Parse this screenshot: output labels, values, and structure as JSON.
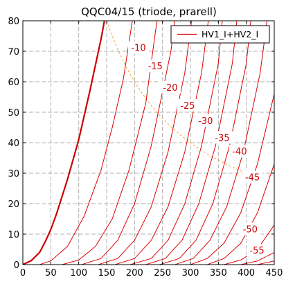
{
  "chart_data": {
    "type": "line",
    "title": "QQC04/15 (triode, prarell)",
    "xlabel": "",
    "ylabel": "",
    "xlim": [
      0,
      450
    ],
    "ylim": [
      0,
      80
    ],
    "x_ticks": [
      0,
      50,
      100,
      150,
      200,
      250,
      300,
      350,
      400,
      450
    ],
    "y_ticks": [
      0,
      10,
      20,
      30,
      40,
      50,
      60,
      70,
      80
    ],
    "grid": true,
    "legend": {
      "position": "top-right",
      "entries": [
        "HV1_I+HV2_I"
      ]
    },
    "colors": {
      "curves": "#dd0000",
      "zero_bias_curve": "#cc0000",
      "dissipation_line": "#f0a030",
      "grid": "#b0b0b0"
    },
    "series": [
      {
        "name": "HV1_I+HV2_I",
        "label": "",
        "bold": true,
        "x0": 0,
        "points": [
          [
            0,
            0
          ],
          [
            15,
            1.3
          ],
          [
            30,
            4
          ],
          [
            40,
            7.5
          ],
          [
            50,
            11.5
          ],
          [
            60,
            16.5
          ],
          [
            80,
            28
          ],
          [
            100,
            41
          ],
          [
            120,
            57
          ],
          [
            140,
            74
          ],
          [
            146,
            80
          ]
        ]
      },
      {
        "name": "",
        "label": "-10",
        "x0": 30,
        "points": [
          [
            30,
            0
          ],
          [
            50,
            1.2
          ],
          [
            80,
            6
          ],
          [
            110,
            16
          ],
          [
            140,
            31
          ],
          [
            160,
            45
          ],
          [
            180,
            61
          ],
          [
            196,
            80
          ]
        ]
      },
      {
        "name": "",
        "label": "-15",
        "x0": 70,
        "points": [
          [
            70,
            0
          ],
          [
            100,
            1.5
          ],
          [
            130,
            6
          ],
          [
            160,
            15
          ],
          [
            190,
            31
          ],
          [
            220,
            53
          ],
          [
            240,
            80
          ]
        ]
      },
      {
        "name": "",
        "label": "-20",
        "x0": 105,
        "points": [
          [
            105,
            0
          ],
          [
            140,
            2
          ],
          [
            170,
            8
          ],
          [
            200,
            20
          ],
          [
            230,
            39
          ],
          [
            265,
            70
          ],
          [
            272,
            80
          ]
        ]
      },
      {
        "name": "",
        "label": "-25",
        "x0": 135,
        "points": [
          [
            135,
            0
          ],
          [
            170,
            2
          ],
          [
            200,
            8
          ],
          [
            230,
            19
          ],
          [
            260,
            37
          ],
          [
            290,
            63
          ],
          [
            302,
            80
          ]
        ]
      },
      {
        "name": "",
        "label": "-30",
        "x0": 165,
        "points": [
          [
            165,
            0
          ],
          [
            200,
            2
          ],
          [
            230,
            8
          ],
          [
            260,
            19
          ],
          [
            290,
            37
          ],
          [
            320,
            63
          ],
          [
            332,
            80
          ]
        ]
      },
      {
        "name": "",
        "label": "-35",
        "x0": 192,
        "points": [
          [
            192,
            0
          ],
          [
            230,
            2
          ],
          [
            260,
            8
          ],
          [
            290,
            20
          ],
          [
            320,
            39
          ],
          [
            350,
            66
          ],
          [
            357,
            80
          ]
        ]
      },
      {
        "name": "",
        "label": "-40",
        "x0": 220,
        "points": [
          [
            220,
            0
          ],
          [
            255,
            2
          ],
          [
            285,
            8
          ],
          [
            315,
            20
          ],
          [
            345,
            39
          ],
          [
            375,
            66
          ],
          [
            383,
            80
          ]
        ]
      },
      {
        "name": "",
        "label": "-45",
        "x0": 245,
        "points": [
          [
            245,
            0
          ],
          [
            280,
            2
          ],
          [
            310,
            8
          ],
          [
            340,
            20
          ],
          [
            370,
            39
          ],
          [
            400,
            66
          ],
          [
            408,
            80
          ]
        ]
      },
      {
        "name": "",
        "label": "-50",
        "x0": 272,
        "points": [
          [
            272,
            0
          ],
          [
            305,
            2
          ],
          [
            335,
            8
          ],
          [
            365,
            19
          ],
          [
            395,
            37
          ],
          [
            425,
            63
          ],
          [
            437,
            80
          ]
        ]
      },
      {
        "name": "",
        "label": "-55",
        "x0": 300,
        "points": [
          [
            300,
            0
          ],
          [
            330,
            2
          ],
          [
            360,
            7
          ],
          [
            390,
            17
          ],
          [
            420,
            33
          ],
          [
            450,
            56
          ]
        ]
      },
      {
        "name": "",
        "label": "",
        "x0": 330,
        "points": [
          [
            330,
            0
          ],
          [
            360,
            2
          ],
          [
            390,
            7
          ],
          [
            420,
            17
          ],
          [
            450,
            33
          ]
        ]
      },
      {
        "name": "",
        "label": "",
        "x0": 360,
        "points": [
          [
            360,
            0
          ],
          [
            390,
            1.5
          ],
          [
            420,
            5
          ],
          [
            450,
            13
          ]
        ]
      },
      {
        "name": "",
        "label": "",
        "x0": 390,
        "points": [
          [
            390,
            0
          ],
          [
            420,
            1.2
          ],
          [
            450,
            4
          ]
        ]
      },
      {
        "name": "",
        "label": "",
        "x0": 420,
        "points": [
          [
            420,
            0
          ],
          [
            450,
            1.2
          ]
        ]
      }
    ],
    "curve_labels": [
      {
        "text": "-10",
        "x": 207,
        "y": 71
      },
      {
        "text": "-15",
        "x": 237,
        "y": 65
      },
      {
        "text": "-20",
        "x": 264,
        "y": 58
      },
      {
        "text": "-25",
        "x": 295,
        "y": 52
      },
      {
        "text": "-30",
        "x": 327,
        "y": 47
      },
      {
        "text": "-35",
        "x": 357,
        "y": 41.5
      },
      {
        "text": "-40",
        "x": 388,
        "y": 37
      },
      {
        "text": "-45",
        "x": 411,
        "y": 28.5
      },
      {
        "text": "-50",
        "x": 407,
        "y": 11.5
      },
      {
        "text": "-55",
        "x": 419,
        "y": 4.5
      }
    ],
    "dissipation_curve": {
      "name": "",
      "power_product": 12000,
      "x_range": [
        150,
        410
      ]
    }
  }
}
